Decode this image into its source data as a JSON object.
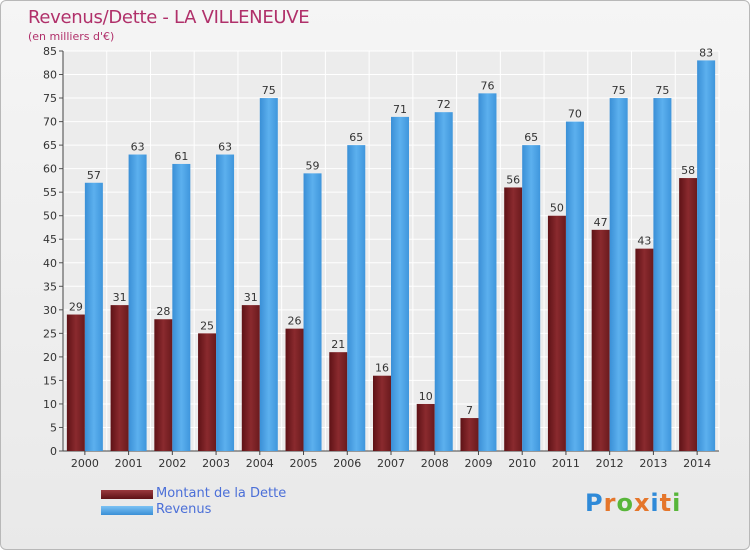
{
  "header": {
    "title": "Revenus/Dette - LA VILLENEUVE",
    "subtitle": "(en milliers d'€)"
  },
  "legend": {
    "items": [
      {
        "label": "Montant de la Dette",
        "color": "#7a1e22"
      },
      {
        "label": "Revenus",
        "color": "#4a9fe3"
      }
    ]
  },
  "logo": {
    "letters": [
      "P",
      "r",
      "o",
      "x",
      "i",
      "t",
      "i"
    ],
    "colors": [
      "#2f8ad8",
      "#e5762b",
      "#58b63a",
      "#e5762b",
      "#2f8ad8",
      "#e5762b",
      "#58b63a"
    ]
  },
  "chart_data": {
    "type": "bar",
    "categories": [
      "2000",
      "2001",
      "2002",
      "2003",
      "2004",
      "2005",
      "2006",
      "2007",
      "2008",
      "2009",
      "2010",
      "2011",
      "2012",
      "2013",
      "2014"
    ],
    "series": [
      {
        "name": "Montant de la Dette",
        "color": "#7a1e22",
        "values": [
          29,
          31,
          28,
          25,
          31,
          26,
          21,
          16,
          10,
          7,
          56,
          50,
          47,
          43,
          58
        ]
      },
      {
        "name": "Revenus",
        "color": "#4a9fe3",
        "values": [
          57,
          63,
          61,
          63,
          75,
          59,
          65,
          71,
          72,
          76,
          65,
          70,
          75,
          75,
          83
        ]
      }
    ],
    "ylim": [
      0,
      85
    ],
    "yticks": [
      0,
      5,
      10,
      15,
      20,
      25,
      30,
      35,
      40,
      45,
      50,
      55,
      60,
      65,
      70,
      75,
      80,
      85
    ],
    "grid": true,
    "legend_position": "bottom-left",
    "data_labels": true
  }
}
